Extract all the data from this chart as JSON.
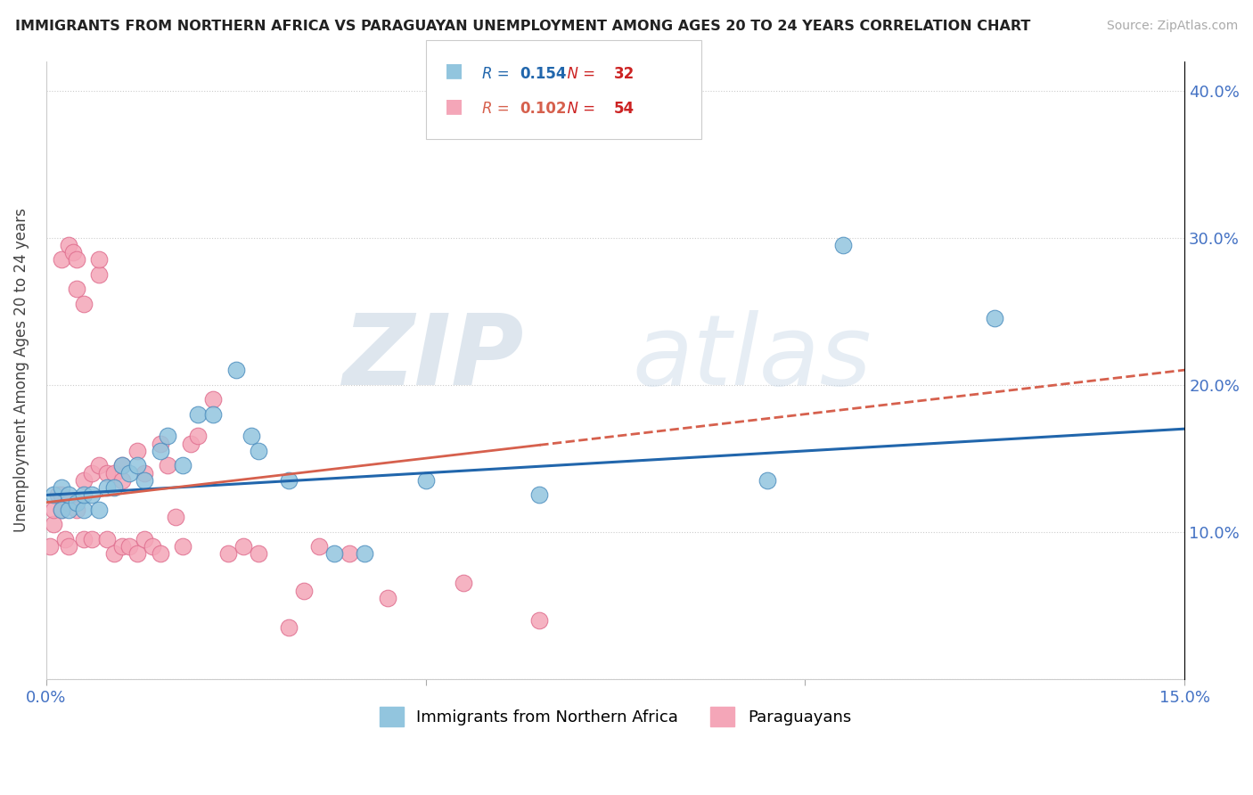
{
  "title": "IMMIGRANTS FROM NORTHERN AFRICA VS PARAGUAYAN UNEMPLOYMENT AMONG AGES 20 TO 24 YEARS CORRELATION CHART",
  "source": "Source: ZipAtlas.com",
  "ylabel": "Unemployment Among Ages 20 to 24 years",
  "xlim": [
    0.0,
    0.15
  ],
  "ylim": [
    0.0,
    0.42
  ],
  "blue_R": "0.154",
  "blue_N": "32",
  "pink_R": "0.102",
  "pink_N": "54",
  "blue_color": "#92c5de",
  "pink_color": "#f4a6b8",
  "blue_line_color": "#2166ac",
  "pink_line_color": "#d6604d",
  "blue_points_x": [
    0.001,
    0.002,
    0.002,
    0.003,
    0.003,
    0.004,
    0.005,
    0.005,
    0.006,
    0.007,
    0.008,
    0.009,
    0.01,
    0.011,
    0.012,
    0.013,
    0.015,
    0.016,
    0.018,
    0.02,
    0.022,
    0.025,
    0.027,
    0.028,
    0.032,
    0.038,
    0.042,
    0.05,
    0.065,
    0.095,
    0.105,
    0.125
  ],
  "blue_points_y": [
    0.125,
    0.115,
    0.13,
    0.115,
    0.125,
    0.12,
    0.115,
    0.125,
    0.125,
    0.115,
    0.13,
    0.13,
    0.145,
    0.14,
    0.145,
    0.135,
    0.155,
    0.165,
    0.145,
    0.18,
    0.18,
    0.21,
    0.165,
    0.155,
    0.135,
    0.085,
    0.085,
    0.135,
    0.125,
    0.135,
    0.295,
    0.245
  ],
  "pink_points_x": [
    0.0005,
    0.001,
    0.001,
    0.0015,
    0.002,
    0.002,
    0.002,
    0.0025,
    0.003,
    0.003,
    0.003,
    0.0035,
    0.004,
    0.004,
    0.004,
    0.005,
    0.005,
    0.005,
    0.006,
    0.006,
    0.007,
    0.007,
    0.007,
    0.008,
    0.008,
    0.009,
    0.009,
    0.01,
    0.01,
    0.01,
    0.011,
    0.012,
    0.012,
    0.013,
    0.013,
    0.014,
    0.015,
    0.015,
    0.016,
    0.017,
    0.018,
    0.019,
    0.02,
    0.022,
    0.024,
    0.026,
    0.028,
    0.032,
    0.034,
    0.036,
    0.04,
    0.045,
    0.055,
    0.065
  ],
  "pink_points_y": [
    0.09,
    0.105,
    0.115,
    0.125,
    0.115,
    0.125,
    0.285,
    0.095,
    0.09,
    0.12,
    0.295,
    0.29,
    0.115,
    0.265,
    0.285,
    0.095,
    0.135,
    0.255,
    0.095,
    0.14,
    0.145,
    0.275,
    0.285,
    0.095,
    0.14,
    0.085,
    0.14,
    0.09,
    0.135,
    0.145,
    0.09,
    0.085,
    0.155,
    0.095,
    0.14,
    0.09,
    0.085,
    0.16,
    0.145,
    0.11,
    0.09,
    0.16,
    0.165,
    0.19,
    0.085,
    0.09,
    0.085,
    0.035,
    0.06,
    0.09,
    0.085,
    0.055,
    0.065,
    0.04
  ]
}
